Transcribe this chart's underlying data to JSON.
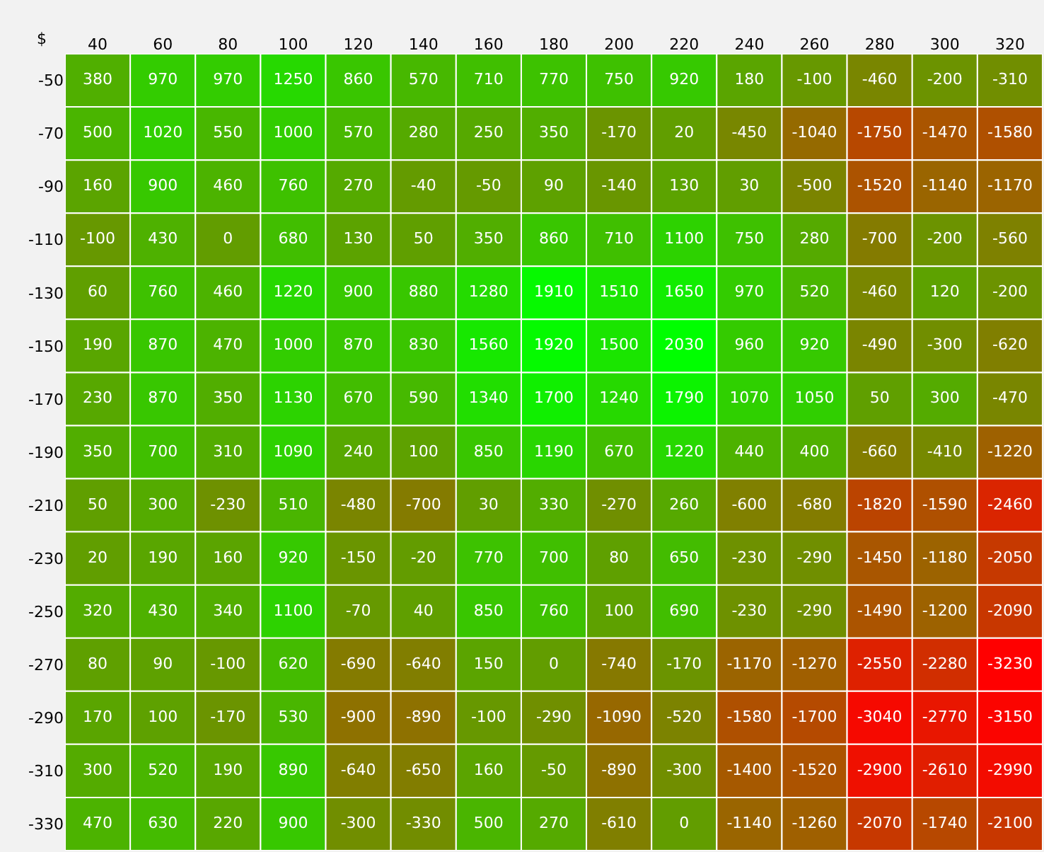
{
  "chart_data": {
    "type": "heatmap",
    "ylabel": "$",
    "data_labels": true,
    "categories": [
      "40",
      "60",
      "80",
      "100",
      "120",
      "140",
      "160",
      "180",
      "200",
      "220",
      "240",
      "260",
      "280",
      "300",
      "320"
    ],
    "y_categories": [
      "-50",
      "-70",
      "-90",
      "-110",
      "-130",
      "-150",
      "-170",
      "-190",
      "-210",
      "-230",
      "-250",
      "-270",
      "-290",
      "-310",
      "-330"
    ],
    "cells": [
      [
        380,
        970,
        970,
        1250,
        860,
        570,
        710,
        770,
        750,
        920,
        180,
        -100,
        -460,
        -200,
        -310
      ],
      [
        500,
        1020,
        550,
        1000,
        570,
        280,
        250,
        350,
        -170,
        20,
        -450,
        -1040,
        -1750,
        -1470,
        -1580
      ],
      [
        160,
        900,
        460,
        760,
        270,
        -40,
        -50,
        90,
        -140,
        130,
        30,
        -500,
        -1520,
        -1140,
        -1170
      ],
      [
        -100,
        430,
        0,
        680,
        130,
        50,
        350,
        860,
        710,
        1100,
        750,
        280,
        -700,
        -200,
        -560
      ],
      [
        60,
        760,
        460,
        1220,
        900,
        880,
        1280,
        1910,
        1510,
        1650,
        970,
        520,
        -460,
        120,
        -200
      ],
      [
        190,
        870,
        470,
        1000,
        870,
        830,
        1560,
        1920,
        1500,
        2030,
        960,
        920,
        -490,
        -300,
        -620
      ],
      [
        230,
        870,
        350,
        1130,
        670,
        590,
        1340,
        1700,
        1240,
        1790,
        1070,
        1050,
        50,
        300,
        -470
      ],
      [
        350,
        700,
        310,
        1090,
        240,
        100,
        850,
        1190,
        670,
        1220,
        440,
        400,
        -660,
        -410,
        -1220
      ],
      [
        50,
        300,
        -230,
        510,
        -480,
        -700,
        30,
        330,
        -270,
        260,
        -600,
        -680,
        -1820,
        -1590,
        -2460
      ],
      [
        20,
        190,
        160,
        920,
        -150,
        -20,
        770,
        700,
        80,
        650,
        -230,
        -290,
        -1450,
        -1180,
        -2050
      ],
      [
        320,
        430,
        340,
        1100,
        -70,
        40,
        850,
        760,
        100,
        690,
        -230,
        -290,
        -1490,
        -1200,
        -2090
      ],
      [
        80,
        90,
        -100,
        620,
        -690,
        -640,
        150,
        0,
        -740,
        -170,
        -1170,
        -1270,
        -2550,
        -2280,
        -3230
      ],
      [
        170,
        100,
        -170,
        530,
        -900,
        -890,
        -100,
        -290,
        -1090,
        -520,
        -1580,
        -1700,
        -3040,
        -2770,
        -3150
      ],
      [
        300,
        520,
        190,
        890,
        -640,
        -650,
        160,
        -50,
        -890,
        -300,
        -1400,
        -1520,
        -2900,
        -2610,
        -2990
      ],
      [
        470,
        630,
        220,
        900,
        -300,
        -330,
        500,
        270,
        -610,
        0,
        -1140,
        -1260,
        -2070,
        -1740,
        -2100
      ]
    ]
  }
}
